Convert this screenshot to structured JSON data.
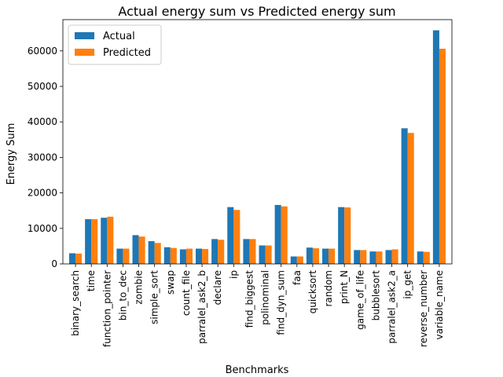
{
  "chart_data": {
    "type": "bar",
    "title": "Actual energy sum vs Predicted energy sum",
    "xlabel": "Benchmarks",
    "ylabel": "Energy Sum",
    "ylim": [
      0,
      68800
    ],
    "yticks": [
      0,
      10000,
      20000,
      30000,
      40000,
      50000,
      60000
    ],
    "grid": false,
    "legend_position": "top-left",
    "categories": [
      "binary_search",
      "time",
      "function_pointer",
      "bin_to_dec",
      "zombie",
      "simple_sort",
      "swap",
      "count_file",
      "parralel_ask2_b",
      "declare",
      "ip",
      "find_biggest",
      "polinominal",
      "find_dyn_sum",
      "faa",
      "quicksort",
      "random",
      "print_N",
      "game_of_life",
      "bubblesort",
      "parralel_ask2_a",
      "ip_get",
      "reverse_number",
      "variable_name"
    ],
    "series": [
      {
        "name": "Actual",
        "color": "#1f77b4",
        "values": [
          3000,
          12600,
          13000,
          4300,
          8100,
          6400,
          4700,
          4100,
          4300,
          7000,
          16000,
          7000,
          5200,
          16600,
          2100,
          4600,
          4300,
          16000,
          3900,
          3500,
          3900,
          38200,
          3500,
          65800
        ]
      },
      {
        "name": "Predicted",
        "color": "#ff7f0e",
        "values": [
          2900,
          12600,
          13300,
          4300,
          7700,
          5900,
          4500,
          4300,
          4200,
          6800,
          15200,
          7000,
          5200,
          16200,
          2100,
          4400,
          4300,
          15900,
          3900,
          3500,
          4100,
          36900,
          3400,
          60600
        ]
      }
    ]
  }
}
